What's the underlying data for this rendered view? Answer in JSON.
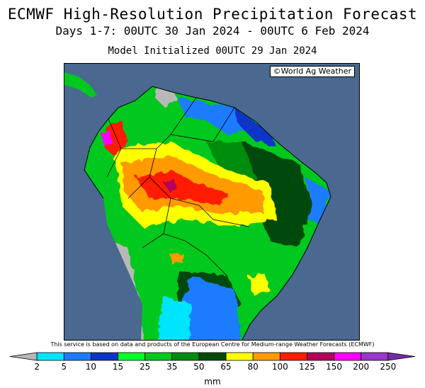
{
  "title_line1": "ECMWF High-Resolution Precipitation Forecast",
  "title_line2": "Days 1-7: 00UTC 30 Jan 2024 - 00UTC 6 Feb 2024",
  "title_line3": "Model Initialized 00UTC 29 Jan 2024",
  "credit": "©World Ag Weather",
  "disclaimer": "This service is based on data and products of the European Centre for Medium-range Weather Forecasts (ECMWF)",
  "legend": {
    "unit": "mm",
    "ticks": [
      "2",
      "5",
      "10",
      "15",
      "25",
      "35",
      "50",
      "65",
      "80",
      "100",
      "125",
      "150",
      "200",
      "250"
    ],
    "colors": [
      "#b8b8b8",
      "#00e5ff",
      "#1e7bff",
      "#0a35c8",
      "#00ff2a",
      "#00c81e",
      "#008c10",
      "#004a08",
      "#ffff00",
      "#ff9a00",
      "#ff1e00",
      "#b4005a",
      "#ff00ff",
      "#9a36c8",
      "#7a2aa8"
    ]
  }
}
